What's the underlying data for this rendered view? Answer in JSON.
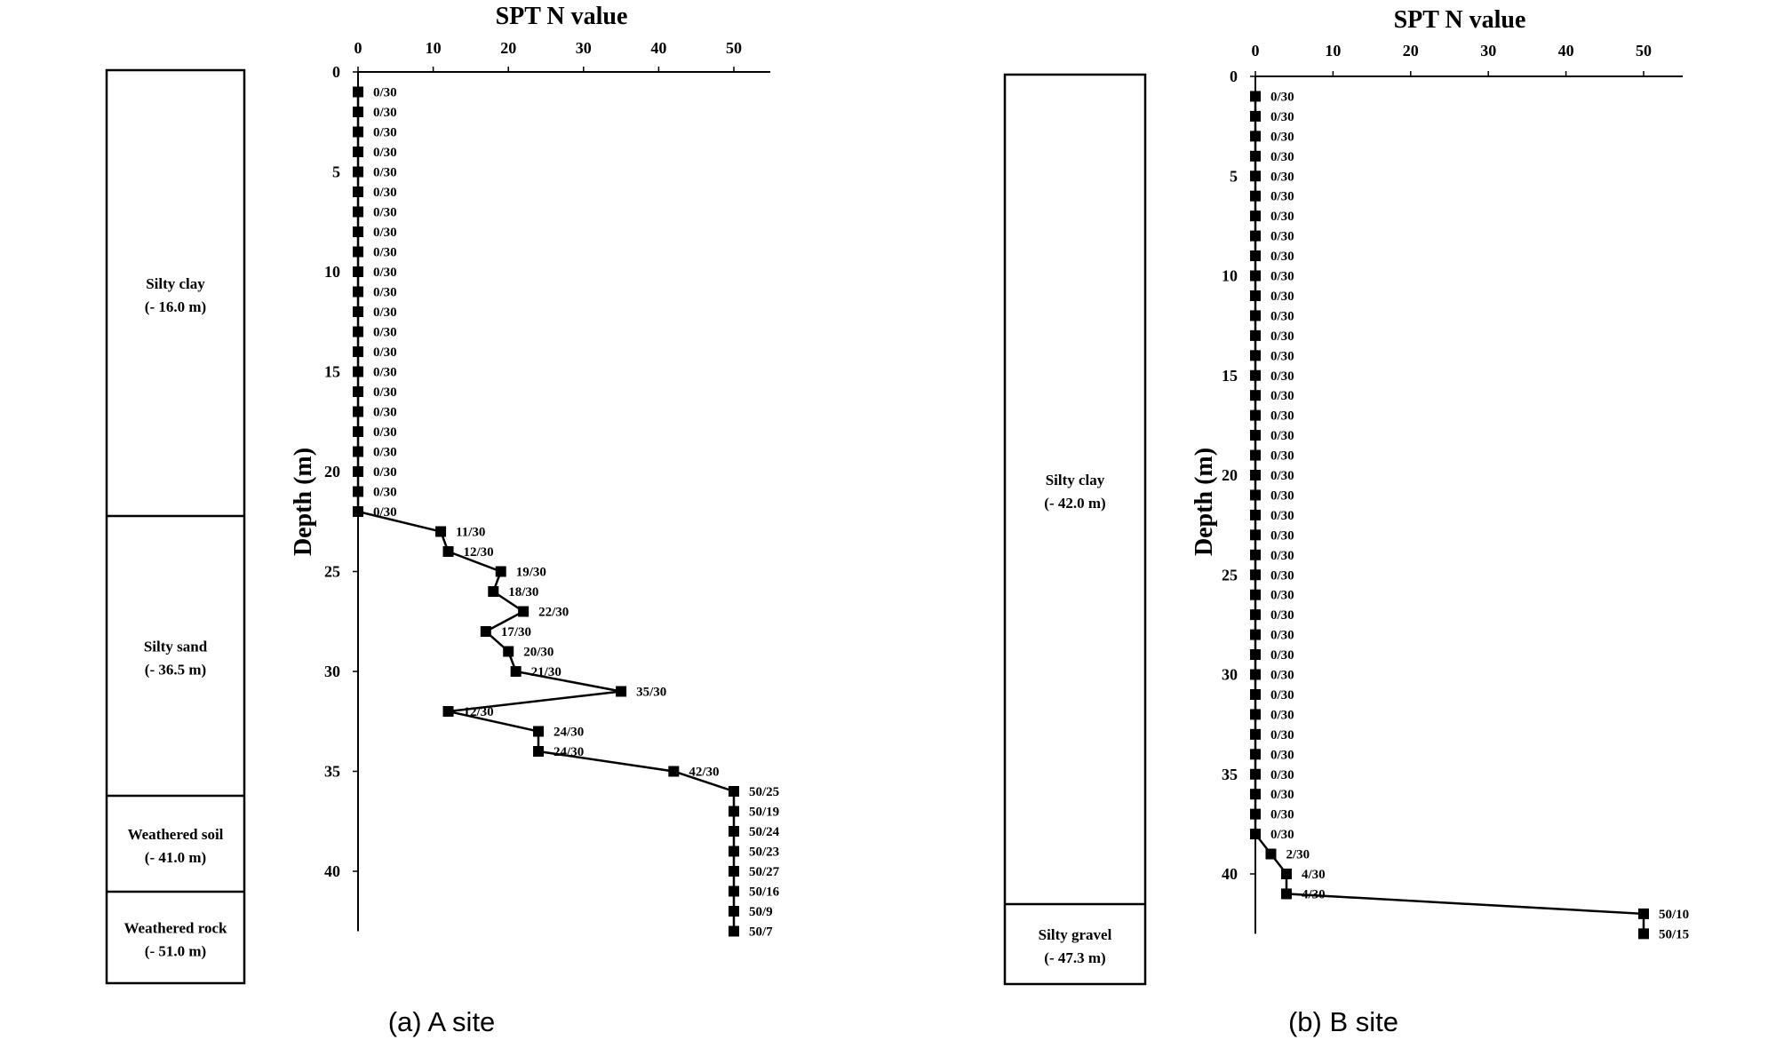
{
  "chart_data": [
    {
      "type": "line",
      "title": "SPT N value",
      "caption": "(a) A site",
      "xlabel": "SPT N value",
      "ylabel": "Depth (m)",
      "xlim": [
        0,
        55
      ],
      "ylim": [
        0,
        43
      ],
      "x_ticks": [
        0,
        10,
        20,
        30,
        40,
        50
      ],
      "y_ticks": [
        0,
        5,
        10,
        15,
        20,
        25,
        30,
        35,
        40
      ],
      "grid": false,
      "series": [
        {
          "points": [
            {
              "depth": 1,
              "n": 0,
              "label": "0/30"
            },
            {
              "depth": 2,
              "n": 0,
              "label": "0/30"
            },
            {
              "depth": 3,
              "n": 0,
              "label": "0/30"
            },
            {
              "depth": 4,
              "n": 0,
              "label": "0/30"
            },
            {
              "depth": 5,
              "n": 0,
              "label": "0/30"
            },
            {
              "depth": 6,
              "n": 0,
              "label": "0/30"
            },
            {
              "depth": 7,
              "n": 0,
              "label": "0/30"
            },
            {
              "depth": 8,
              "n": 0,
              "label": "0/30"
            },
            {
              "depth": 9,
              "n": 0,
              "label": "0/30"
            },
            {
              "depth": 10,
              "n": 0,
              "label": "0/30"
            },
            {
              "depth": 11,
              "n": 0,
              "label": "0/30"
            },
            {
              "depth": 12,
              "n": 0,
              "label": "0/30"
            },
            {
              "depth": 13,
              "n": 0,
              "label": "0/30"
            },
            {
              "depth": 14,
              "n": 0,
              "label": "0/30"
            },
            {
              "depth": 15,
              "n": 0,
              "label": "0/30"
            },
            {
              "depth": 16,
              "n": 0,
              "label": "0/30"
            },
            {
              "depth": 17,
              "n": 0,
              "label": "0/30"
            },
            {
              "depth": 18,
              "n": 0,
              "label": "0/30"
            },
            {
              "depth": 19,
              "n": 0,
              "label": "0/30"
            },
            {
              "depth": 20,
              "n": 0,
              "label": "0/30"
            },
            {
              "depth": 21,
              "n": 0,
              "label": "0/30"
            },
            {
              "depth": 22,
              "n": 0,
              "label": "0/30"
            },
            {
              "depth": 23,
              "n": 11,
              "label": "11/30"
            },
            {
              "depth": 24,
              "n": 12,
              "label": "12/30"
            },
            {
              "depth": 25,
              "n": 19,
              "label": "19/30"
            },
            {
              "depth": 26,
              "n": 18,
              "label": "18/30"
            },
            {
              "depth": 27,
              "n": 22,
              "label": "22/30"
            },
            {
              "depth": 28,
              "n": 17,
              "label": "17/30"
            },
            {
              "depth": 29,
              "n": 20,
              "label": "20/30"
            },
            {
              "depth": 30,
              "n": 21,
              "label": "21/30"
            },
            {
              "depth": 31,
              "n": 35,
              "label": "35/30"
            },
            {
              "depth": 32,
              "n": 12,
              "label": "12/30"
            },
            {
              "depth": 33,
              "n": 24,
              "label": "24/30"
            },
            {
              "depth": 34,
              "n": 24,
              "label": "24/30"
            },
            {
              "depth": 35,
              "n": 42,
              "label": "42/30"
            },
            {
              "depth": 36,
              "n": 50,
              "label": "50/25"
            },
            {
              "depth": 37,
              "n": 50,
              "label": "50/19"
            },
            {
              "depth": 38,
              "n": 50,
              "label": "50/24"
            },
            {
              "depth": 39,
              "n": 50,
              "label": "50/23"
            },
            {
              "depth": 40,
              "n": 50,
              "label": "50/27"
            },
            {
              "depth": 41,
              "n": 50,
              "label": "50/16"
            },
            {
              "depth": 42,
              "n": 50,
              "label": "50/9"
            },
            {
              "depth": 43,
              "n": 50,
              "label": "50/7"
            }
          ]
        }
      ],
      "layers": [
        {
          "name": "Silty clay",
          "depth": "(- 16.0 m)"
        },
        {
          "name": "Silty sand",
          "depth": "(- 36.5 m)"
        },
        {
          "name": "Weathered soil",
          "depth": "(- 41.0 m)"
        },
        {
          "name": "Weathered rock",
          "depth": "(- 51.0 m)"
        }
      ]
    },
    {
      "type": "line",
      "title": "SPT N value",
      "caption": "(b) B site",
      "xlabel": "SPT N value",
      "ylabel": "Depth (m)",
      "xlim": [
        0,
        55
      ],
      "ylim": [
        0,
        43
      ],
      "x_ticks": [
        0,
        10,
        20,
        30,
        40,
        50
      ],
      "y_ticks": [
        0,
        5,
        10,
        15,
        20,
        25,
        30,
        35,
        40
      ],
      "grid": false,
      "series": [
        {
          "points": [
            {
              "depth": 1,
              "n": 0,
              "label": "0/30"
            },
            {
              "depth": 2,
              "n": 0,
              "label": "0/30"
            },
            {
              "depth": 3,
              "n": 0,
              "label": "0/30"
            },
            {
              "depth": 4,
              "n": 0,
              "label": "0/30"
            },
            {
              "depth": 5,
              "n": 0,
              "label": "0/30"
            },
            {
              "depth": 6,
              "n": 0,
              "label": "0/30"
            },
            {
              "depth": 7,
              "n": 0,
              "label": "0/30"
            },
            {
              "depth": 8,
              "n": 0,
              "label": "0/30"
            },
            {
              "depth": 9,
              "n": 0,
              "label": "0/30"
            },
            {
              "depth": 10,
              "n": 0,
              "label": "0/30"
            },
            {
              "depth": 11,
              "n": 0,
              "label": "0/30"
            },
            {
              "depth": 12,
              "n": 0,
              "label": "0/30"
            },
            {
              "depth": 13,
              "n": 0,
              "label": "0/30"
            },
            {
              "depth": 14,
              "n": 0,
              "label": "0/30"
            },
            {
              "depth": 15,
              "n": 0,
              "label": "0/30"
            },
            {
              "depth": 16,
              "n": 0,
              "label": "0/30"
            },
            {
              "depth": 17,
              "n": 0,
              "label": "0/30"
            },
            {
              "depth": 18,
              "n": 0,
              "label": "0/30"
            },
            {
              "depth": 19,
              "n": 0,
              "label": "0/30"
            },
            {
              "depth": 20,
              "n": 0,
              "label": "0/30"
            },
            {
              "depth": 21,
              "n": 0,
              "label": "0/30"
            },
            {
              "depth": 22,
              "n": 0,
              "label": "0/30"
            },
            {
              "depth": 23,
              "n": 0,
              "label": "0/30"
            },
            {
              "depth": 24,
              "n": 0,
              "label": "0/30"
            },
            {
              "depth": 25,
              "n": 0,
              "label": "0/30"
            },
            {
              "depth": 26,
              "n": 0,
              "label": "0/30"
            },
            {
              "depth": 27,
              "n": 0,
              "label": "0/30"
            },
            {
              "depth": 28,
              "n": 0,
              "label": "0/30"
            },
            {
              "depth": 29,
              "n": 0,
              "label": "0/30"
            },
            {
              "depth": 30,
              "n": 0,
              "label": "0/30"
            },
            {
              "depth": 31,
              "n": 0,
              "label": "0/30"
            },
            {
              "depth": 32,
              "n": 0,
              "label": "0/30"
            },
            {
              "depth": 33,
              "n": 0,
              "label": "0/30"
            },
            {
              "depth": 34,
              "n": 0,
              "label": "0/30"
            },
            {
              "depth": 35,
              "n": 0,
              "label": "0/30"
            },
            {
              "depth": 36,
              "n": 0,
              "label": "0/30"
            },
            {
              "depth": 37,
              "n": 0,
              "label": "0/30"
            },
            {
              "depth": 38,
              "n": 0,
              "label": "0/30"
            },
            {
              "depth": 39,
              "n": 2,
              "label": "2/30"
            },
            {
              "depth": 40,
              "n": 4,
              "label": "4/30"
            },
            {
              "depth": 41,
              "n": 4,
              "label": "4/30"
            },
            {
              "depth": 42,
              "n": 50,
              "label": "50/10"
            },
            {
              "depth": 43,
              "n": 50,
              "label": "50/15"
            }
          ]
        }
      ],
      "layers": [
        {
          "name": "Silty clay",
          "depth": "(- 42.0 m)"
        },
        {
          "name": "Silty gravel",
          "depth": "(- 47.3 m)"
        }
      ]
    }
  ],
  "colors": {
    "ink": "#000000",
    "background": "#ffffff"
  }
}
